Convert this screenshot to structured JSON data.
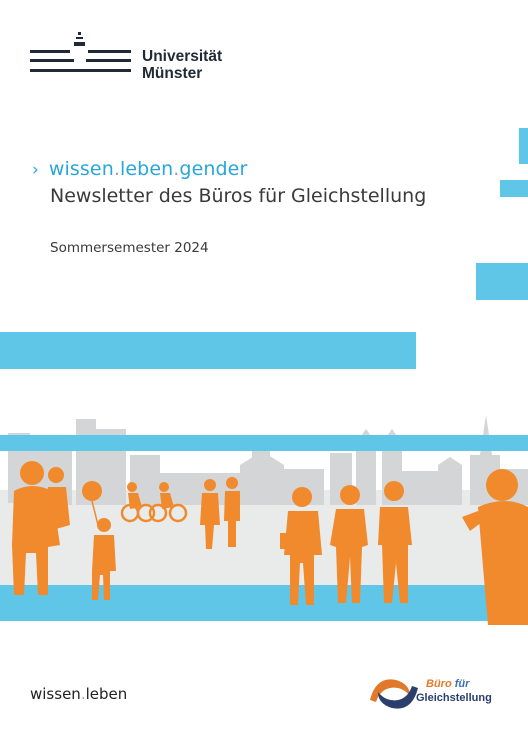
{
  "university": {
    "line1": "Universität",
    "line2": "Münster"
  },
  "series": {
    "part1": "wissen",
    "part2": "leben",
    "part3": "gender",
    "sep": "."
  },
  "subtitle": "Newsletter des Büros für Gleichstellung",
  "semester": "Sommersemester 2024",
  "footer": {
    "brand_part1": "wissen",
    "brand_sep": ".",
    "brand_part2": "leben"
  },
  "office": {
    "word1": "Büro",
    "word2": "für",
    "word3": "Gleichstellung"
  },
  "colors": {
    "accent_blue": "#5fc6e8",
    "orange": "#f08a2c",
    "gray": "#d4d5d6",
    "navy": "#1f2a36"
  }
}
